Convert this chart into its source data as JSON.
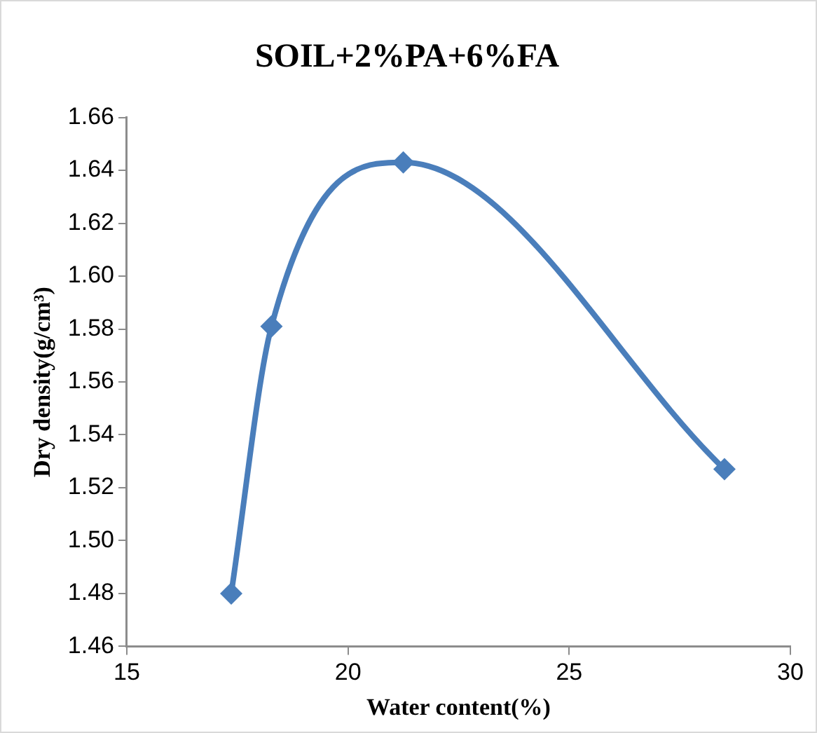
{
  "chart_data": {
    "type": "line",
    "title": "SOIL+2%PA+6%FA",
    "xlabel": "Water content(%)",
    "ylabel": "Dry density(g/cm³)",
    "x": [
      17.36,
      18.27,
      21.25,
      28.51
    ],
    "series": [
      {
        "color": "#4a7ebb",
        "values": [
          1.48,
          1.581,
          1.643,
          1.527
        ]
      }
    ],
    "xlim": [
      15,
      30
    ],
    "xticks": [
      15,
      20,
      25,
      30
    ],
    "ylim": [
      1.46,
      1.66
    ],
    "yticks": [
      {
        "value": 1.46,
        "label": "1.46"
      },
      {
        "value": 1.48,
        "label": "1.48"
      },
      {
        "value": 1.5,
        "label": "1.50"
      },
      {
        "value": 1.52,
        "label": "1.52"
      },
      {
        "value": 1.54,
        "label": "1.54"
      },
      {
        "value": 1.56,
        "label": "1.56"
      },
      {
        "value": 1.58,
        "label": "1.58"
      },
      {
        "value": 1.6,
        "label": "1.60"
      },
      {
        "value": 1.62,
        "label": "1.62"
      },
      {
        "value": 1.64,
        "label": "1.64"
      },
      {
        "value": 1.66,
        "label": "1.66"
      }
    ],
    "grid": false,
    "legend": false,
    "marker": "diamond",
    "line_style": "solid"
  }
}
